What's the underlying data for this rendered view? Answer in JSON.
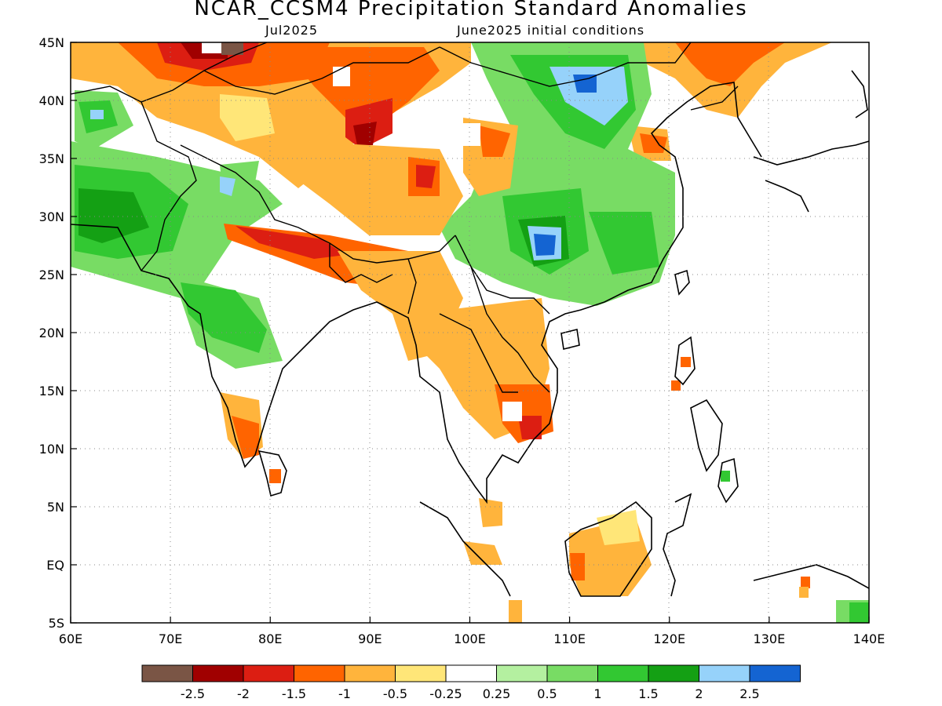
{
  "title": "NCAR_CCSM4 Precipitation Standard Anomalies",
  "subtitle_left": "Jul2025",
  "subtitle_right": "June2025 initial conditions",
  "axes": {
    "lon_labels": [
      "60E",
      "70E",
      "80E",
      "90E",
      "100E",
      "110E",
      "120E",
      "130E",
      "140E"
    ],
    "lat_labels": [
      "45N",
      "40N",
      "35N",
      "30N",
      "25N",
      "20N",
      "15N",
      "10N",
      "5N",
      "EQ",
      "5S"
    ],
    "lon_range": [
      60,
      140
    ],
    "lat_range": [
      -5,
      45
    ],
    "grid": "dotted"
  },
  "colorbar": {
    "colors": [
      "#7a5545",
      "#a00000",
      "#dc1e12",
      "#ff6400",
      "#ffb43c",
      "#ffe678",
      "#ffffff",
      "#b4f0a0",
      "#78dc64",
      "#32c832",
      "#14a014",
      "#96d2fa",
      "#1464d2"
    ],
    "labels": [
      "-2.5",
      "-2",
      "-1.5",
      "-1",
      "-0.5",
      "-0.25",
      "0.25",
      "0.5",
      "1",
      "1.5",
      "2",
      "2.5"
    ]
  },
  "colors": {
    "brown": "#7a5545",
    "darkred": "#a00000",
    "red": "#dc1e12",
    "orange": "#ff6400",
    "lightorange": "#ffb43c",
    "yellow": "#ffe678",
    "lightgreen": "#b4f0a0",
    "green": "#78dc64",
    "midgreen": "#32c832",
    "darkgreen": "#14a014",
    "lightblue": "#96d2fa",
    "blue": "#1464d2"
  }
}
